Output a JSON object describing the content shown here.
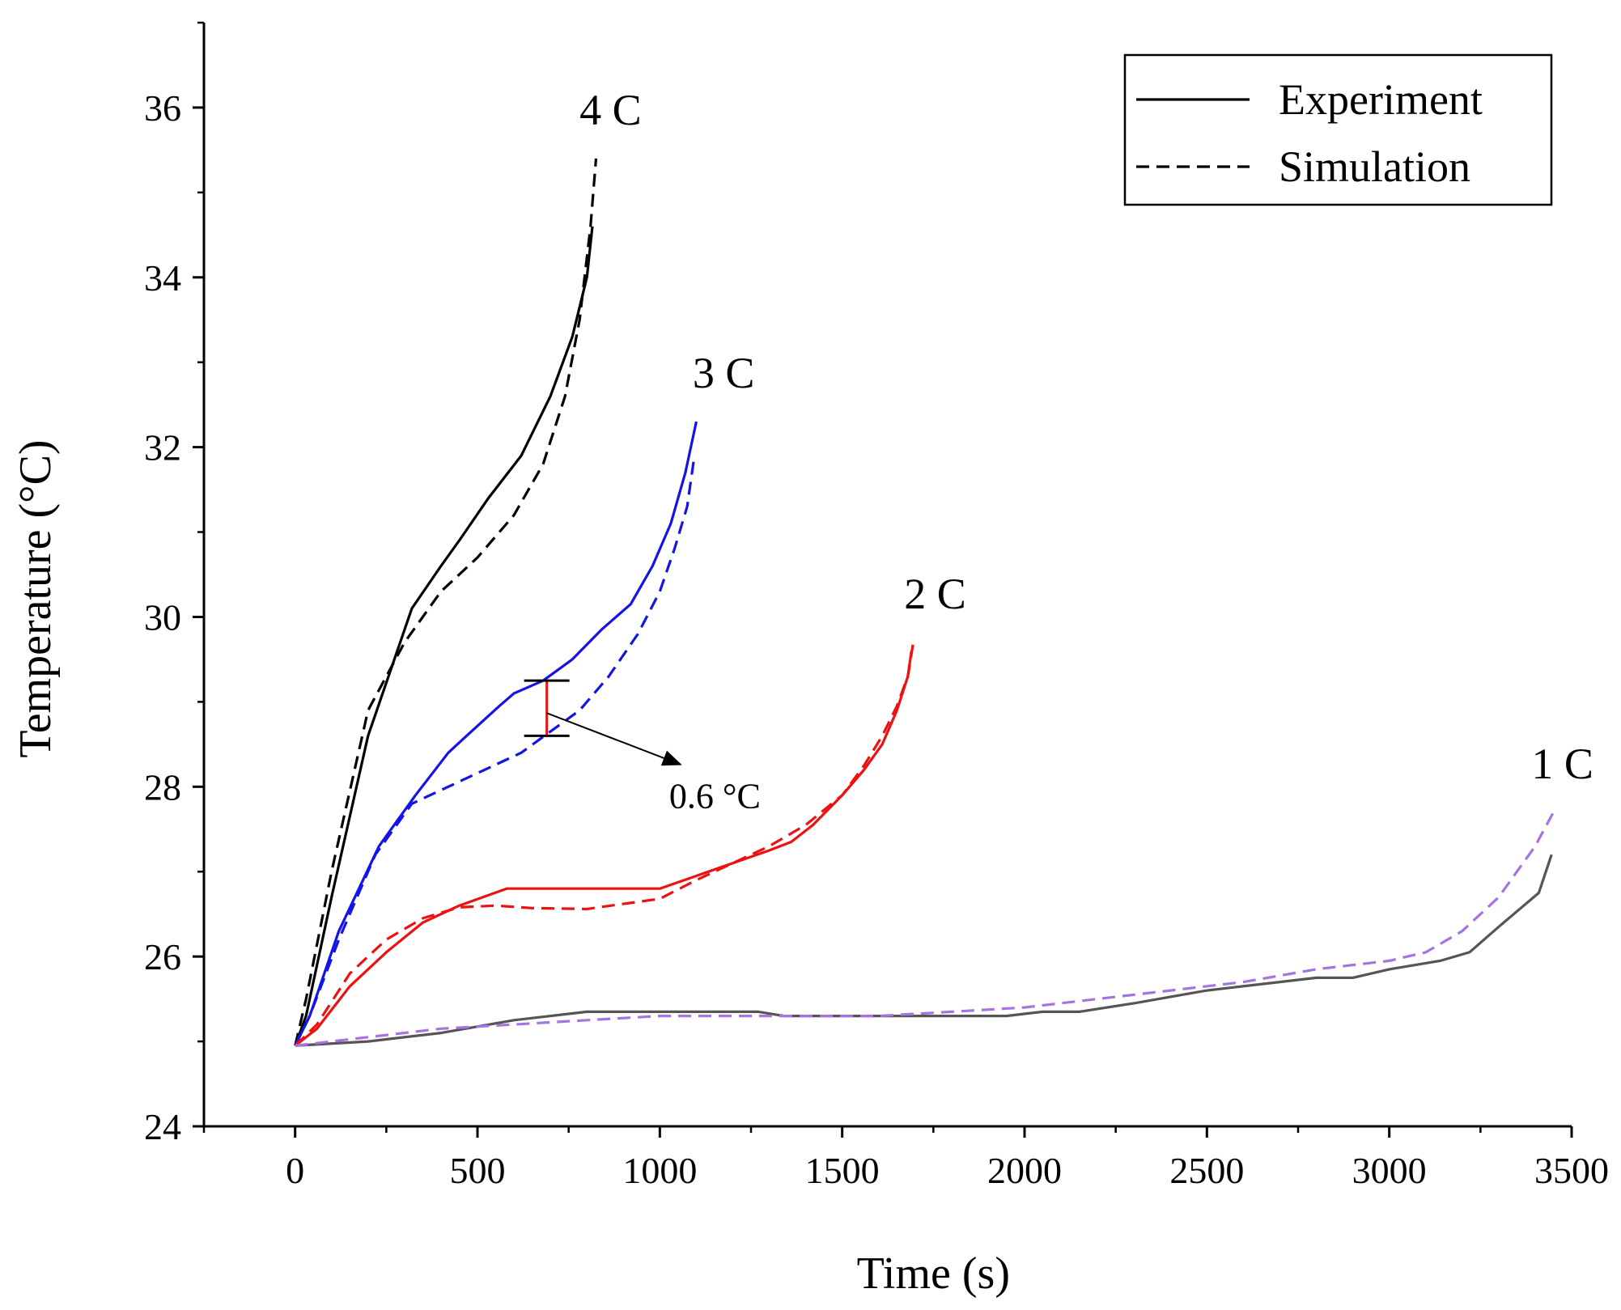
{
  "chart_data": {
    "type": "line",
    "title": "",
    "xlabel": "Time (s)",
    "ylabel": "Temperature (°C)",
    "xlim": [
      -250,
      3500
    ],
    "ylim": [
      24,
      37
    ],
    "xticks": [
      0,
      500,
      1000,
      1500,
      2000,
      2500,
      3000,
      3500
    ],
    "yticks": [
      24,
      26,
      28,
      30,
      32,
      34,
      36
    ],
    "grid": false,
    "legend": {
      "position": "top-right",
      "entries": [
        {
          "label": "Experiment",
          "style": "solid"
        },
        {
          "label": "Simulation",
          "style": "dashed"
        }
      ]
    },
    "series": [
      {
        "name": "4 C Experiment",
        "rate": "4 C",
        "kind": "experiment",
        "color": "#000000",
        "style": "solid",
        "x": [
          0,
          30,
          100,
          200,
          320,
          400,
          450,
          530,
          620,
          700,
          760,
          800,
          815
        ],
        "y": [
          24.95,
          25.3,
          26.7,
          28.6,
          30.1,
          30.6,
          30.9,
          31.4,
          31.9,
          32.6,
          33.3,
          34.0,
          34.6
        ]
      },
      {
        "name": "4 C Simulation",
        "rate": "4 C",
        "kind": "simulation",
        "color": "#000000",
        "style": "dashed",
        "x": [
          0,
          30,
          100,
          200,
          300,
          400,
          500,
          600,
          680,
          740,
          780,
          810,
          825
        ],
        "y": [
          24.95,
          25.5,
          27.0,
          28.9,
          29.7,
          30.3,
          30.7,
          31.2,
          31.8,
          32.6,
          33.5,
          34.6,
          35.4
        ]
      },
      {
        "name": "3 C Experiment",
        "rate": "3 C",
        "kind": "experiment",
        "color": "#1414e6",
        "style": "solid",
        "x": [
          0,
          40,
          120,
          230,
          330,
          420,
          470,
          560,
          600,
          680,
          760,
          840,
          920,
          980,
          1030,
          1070,
          1100
        ],
        "y": [
          24.95,
          25.3,
          26.3,
          27.3,
          27.9,
          28.4,
          28.6,
          28.95,
          29.1,
          29.25,
          29.5,
          29.85,
          30.15,
          30.6,
          31.1,
          31.7,
          32.3
        ]
      },
      {
        "name": "3 C Simulation",
        "rate": "3 C",
        "kind": "simulation",
        "color": "#1414e6",
        "style": "dashed",
        "x": [
          0,
          40,
          120,
          220,
          320,
          420,
          520,
          620,
          700,
          780,
          860,
          940,
          1000,
          1040,
          1075,
          1095
        ],
        "y": [
          24.95,
          25.3,
          26.2,
          27.2,
          27.8,
          28.0,
          28.2,
          28.4,
          28.65,
          28.9,
          29.3,
          29.8,
          30.3,
          30.8,
          31.3,
          31.9
        ]
      },
      {
        "name": "2 C Experiment",
        "rate": "2 C",
        "kind": "experiment",
        "color": "#ee1111",
        "style": "solid",
        "x": [
          0,
          60,
          150,
          250,
          350,
          450,
          580,
          700,
          800,
          1000,
          1100,
          1200,
          1300,
          1360,
          1420,
          1500,
          1560,
          1610,
          1650,
          1680,
          1690
        ],
        "y": [
          24.95,
          25.15,
          25.65,
          26.05,
          26.4,
          26.6,
          26.8,
          26.8,
          26.8,
          26.8,
          26.95,
          27.1,
          27.25,
          27.35,
          27.55,
          27.9,
          28.2,
          28.5,
          28.9,
          29.3,
          29.6
        ]
      },
      {
        "name": "2 C Simulation",
        "rate": "2 C",
        "kind": "simulation",
        "color": "#ee1111",
        "style": "dashed",
        "x": [
          0,
          60,
          150,
          250,
          350,
          450,
          550,
          650,
          800,
          1000,
          1100,
          1200,
          1300,
          1400,
          1500,
          1560,
          1610,
          1650,
          1680,
          1695
        ],
        "y": [
          24.95,
          25.2,
          25.8,
          26.2,
          26.45,
          26.58,
          26.6,
          26.57,
          26.56,
          26.68,
          26.9,
          27.1,
          27.3,
          27.55,
          27.9,
          28.25,
          28.6,
          28.95,
          29.3,
          29.7
        ]
      },
      {
        "name": "1 C Experiment",
        "rate": "1 C",
        "kind": "experiment",
        "color": "#555555",
        "style": "solid",
        "x": [
          0,
          200,
          400,
          600,
          800,
          1000,
          1270,
          1340,
          1500,
          1700,
          1950,
          2050,
          2150,
          2300,
          2500,
          2700,
          2800,
          2900,
          3000,
          3140,
          3220,
          3300,
          3410,
          3445
        ],
        "y": [
          24.95,
          25.0,
          25.1,
          25.25,
          25.35,
          25.35,
          25.35,
          25.3,
          25.3,
          25.3,
          25.3,
          25.35,
          25.35,
          25.45,
          25.6,
          25.7,
          25.75,
          25.75,
          25.85,
          25.95,
          26.05,
          26.35,
          26.75,
          27.2
        ]
      },
      {
        "name": "1 C Simulation",
        "rate": "1 C",
        "kind": "simulation",
        "color": "#a574e0",
        "style": "dashed",
        "x": [
          0,
          200,
          400,
          600,
          800,
          1000,
          1200,
          1400,
          1600,
          1800,
          2000,
          2200,
          2400,
          2600,
          2800,
          2900,
          3000,
          3100,
          3200,
          3300,
          3400,
          3450
        ],
        "y": [
          24.95,
          25.05,
          25.15,
          25.2,
          25.25,
          25.3,
          25.3,
          25.3,
          25.3,
          25.35,
          25.4,
          25.5,
          25.6,
          25.7,
          25.85,
          25.9,
          25.95,
          26.05,
          26.3,
          26.7,
          27.3,
          27.7
        ]
      }
    ],
    "curve_labels": [
      {
        "text": "4 C",
        "x": 780,
        "y": 35.8
      },
      {
        "text": "3 C",
        "x": 1090,
        "y": 32.7
      },
      {
        "text": "2 C",
        "x": 1670,
        "y": 30.1
      },
      {
        "text": "1 C",
        "x": 3390,
        "y": 28.1
      }
    ],
    "annotation": {
      "text": "0.6 °C",
      "x": 690,
      "y_low": 28.6,
      "y_high": 29.25,
      "arrow_to": [
        1070,
        28.3
      ],
      "text_x": 1070,
      "text_y": 27.75,
      "bar_color": "#ee1111"
    }
  }
}
